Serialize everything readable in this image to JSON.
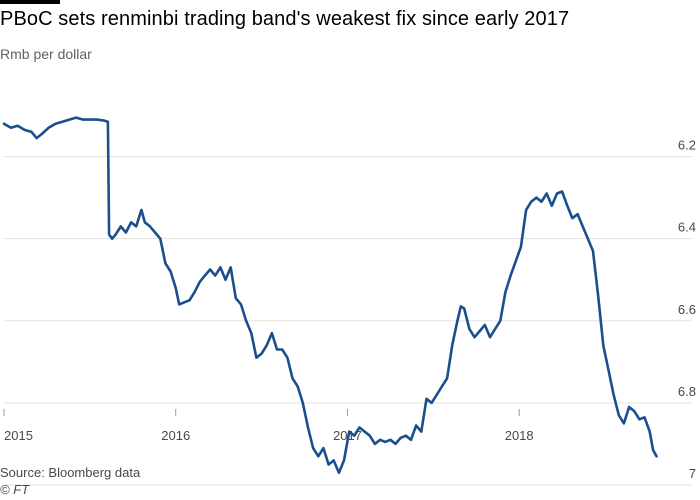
{
  "header": {
    "title": "PBoC sets renminbi trading band's weakest fix since early 2017",
    "subtitle": "Rmb per dollar"
  },
  "footer": {
    "source": "Source: Bloomberg data",
    "credit": "© FT"
  },
  "colors": {
    "line": "#1a4f8f",
    "grid": "#e6e1dc",
    "axis": "#9e9893"
  },
  "chart_data": {
    "type": "line",
    "title": "PBoC sets renminbi trading band's weakest fix since early 2017",
    "ylabel": "Rmb per dollar",
    "y_inverted": true,
    "ylim": [
      6.05,
      7.0
    ],
    "xlim": [
      2015.0,
      2018.82
    ],
    "y_ticks": [
      6.2,
      6.4,
      6.6,
      6.8,
      7
    ],
    "y_tick_labels": [
      "6.2",
      "6.4",
      "6.6",
      "6.8",
      "7"
    ],
    "x_ticks": [
      2015,
      2016,
      2017,
      2018
    ],
    "x_tick_labels": [
      "2015",
      "2016",
      "2017",
      "2018"
    ],
    "grid": "horizontal",
    "series": [
      {
        "points": [
          [
            2015.0,
            6.12
          ],
          [
            2015.04,
            6.13
          ],
          [
            2015.08,
            6.125
          ],
          [
            2015.12,
            6.135
          ],
          [
            2015.16,
            6.14
          ],
          [
            2015.19,
            6.155
          ],
          [
            2015.22,
            6.145
          ],
          [
            2015.26,
            6.13
          ],
          [
            2015.3,
            6.12
          ],
          [
            2015.34,
            6.115
          ],
          [
            2015.38,
            6.11
          ],
          [
            2015.42,
            6.105
          ],
          [
            2015.46,
            6.11
          ],
          [
            2015.5,
            6.11
          ],
          [
            2015.54,
            6.11
          ],
          [
            2015.58,
            6.112
          ],
          [
            2015.605,
            6.115
          ],
          [
            2015.612,
            6.39
          ],
          [
            2015.63,
            6.4
          ],
          [
            2015.65,
            6.39
          ],
          [
            2015.68,
            6.37
          ],
          [
            2015.71,
            6.385
          ],
          [
            2015.74,
            6.36
          ],
          [
            2015.77,
            6.37
          ],
          [
            2015.8,
            6.33
          ],
          [
            2015.82,
            6.36
          ],
          [
            2015.85,
            6.37
          ],
          [
            2015.88,
            6.385
          ],
          [
            2015.91,
            6.4
          ],
          [
            2015.94,
            6.46
          ],
          [
            2015.97,
            6.48
          ],
          [
            2016.0,
            6.52
          ],
          [
            2016.02,
            6.56
          ],
          [
            2016.05,
            6.555
          ],
          [
            2016.08,
            6.55
          ],
          [
            2016.11,
            6.53
          ],
          [
            2016.14,
            6.505
          ],
          [
            2016.17,
            6.49
          ],
          [
            2016.2,
            6.475
          ],
          [
            2016.23,
            6.49
          ],
          [
            2016.26,
            6.47
          ],
          [
            2016.29,
            6.5
          ],
          [
            2016.32,
            6.47
          ],
          [
            2016.35,
            6.545
          ],
          [
            2016.38,
            6.56
          ],
          [
            2016.41,
            6.6
          ],
          [
            2016.44,
            6.63
          ],
          [
            2016.47,
            6.69
          ],
          [
            2016.5,
            6.68
          ],
          [
            2016.53,
            6.66
          ],
          [
            2016.56,
            6.63
          ],
          [
            2016.59,
            6.67
          ],
          [
            2016.62,
            6.67
          ],
          [
            2016.65,
            6.69
          ],
          [
            2016.68,
            6.74
          ],
          [
            2016.71,
            6.76
          ],
          [
            2016.74,
            6.8
          ],
          [
            2016.77,
            6.86
          ],
          [
            2016.8,
            6.91
          ],
          [
            2016.83,
            6.93
          ],
          [
            2016.86,
            6.91
          ],
          [
            2016.89,
            6.95
          ],
          [
            2016.92,
            6.94
          ],
          [
            2016.95,
            6.97
          ],
          [
            2016.98,
            6.94
          ],
          [
            2017.01,
            6.87
          ],
          [
            2017.04,
            6.88
          ],
          [
            2017.07,
            6.86
          ],
          [
            2017.1,
            6.87
          ],
          [
            2017.13,
            6.88
          ],
          [
            2017.16,
            6.9
          ],
          [
            2017.19,
            6.89
          ],
          [
            2017.22,
            6.895
          ],
          [
            2017.25,
            6.89
          ],
          [
            2017.28,
            6.9
          ],
          [
            2017.31,
            6.885
          ],
          [
            2017.34,
            6.88
          ],
          [
            2017.37,
            6.89
          ],
          [
            2017.4,
            6.855
          ],
          [
            2017.43,
            6.87
          ],
          [
            2017.46,
            6.79
          ],
          [
            2017.49,
            6.8
          ],
          [
            2017.52,
            6.78
          ],
          [
            2017.55,
            6.76
          ],
          [
            2017.58,
            6.74
          ],
          [
            2017.61,
            6.66
          ],
          [
            2017.64,
            6.6
          ],
          [
            2017.66,
            6.565
          ],
          [
            2017.68,
            6.57
          ],
          [
            2017.71,
            6.62
          ],
          [
            2017.74,
            6.64
          ],
          [
            2017.77,
            6.625
          ],
          [
            2017.8,
            6.61
          ],
          [
            2017.83,
            6.64
          ],
          [
            2017.86,
            6.62
          ],
          [
            2017.89,
            6.6
          ],
          [
            2017.92,
            6.53
          ],
          [
            2017.95,
            6.49
          ],
          [
            2017.98,
            6.455
          ],
          [
            2018.01,
            6.42
          ],
          [
            2018.04,
            6.33
          ],
          [
            2018.07,
            6.31
          ],
          [
            2018.1,
            6.3
          ],
          [
            2018.13,
            6.31
          ],
          [
            2018.16,
            6.29
          ],
          [
            2018.19,
            6.32
          ],
          [
            2018.22,
            6.29
          ],
          [
            2018.25,
            6.285
          ],
          [
            2018.28,
            6.32
          ],
          [
            2018.31,
            6.35
          ],
          [
            2018.34,
            6.34
          ],
          [
            2018.37,
            6.37
          ],
          [
            2018.4,
            6.4
          ],
          [
            2018.43,
            6.43
          ],
          [
            2018.46,
            6.54
          ],
          [
            2018.49,
            6.66
          ],
          [
            2018.52,
            6.72
          ],
          [
            2018.55,
            6.78
          ],
          [
            2018.58,
            6.83
          ],
          [
            2018.61,
            6.85
          ],
          [
            2018.64,
            6.81
          ],
          [
            2018.67,
            6.82
          ],
          [
            2018.7,
            6.84
          ],
          [
            2018.73,
            6.835
          ],
          [
            2018.76,
            6.87
          ],
          [
            2018.78,
            6.915
          ],
          [
            2018.8,
            6.93
          ]
        ]
      }
    ]
  }
}
